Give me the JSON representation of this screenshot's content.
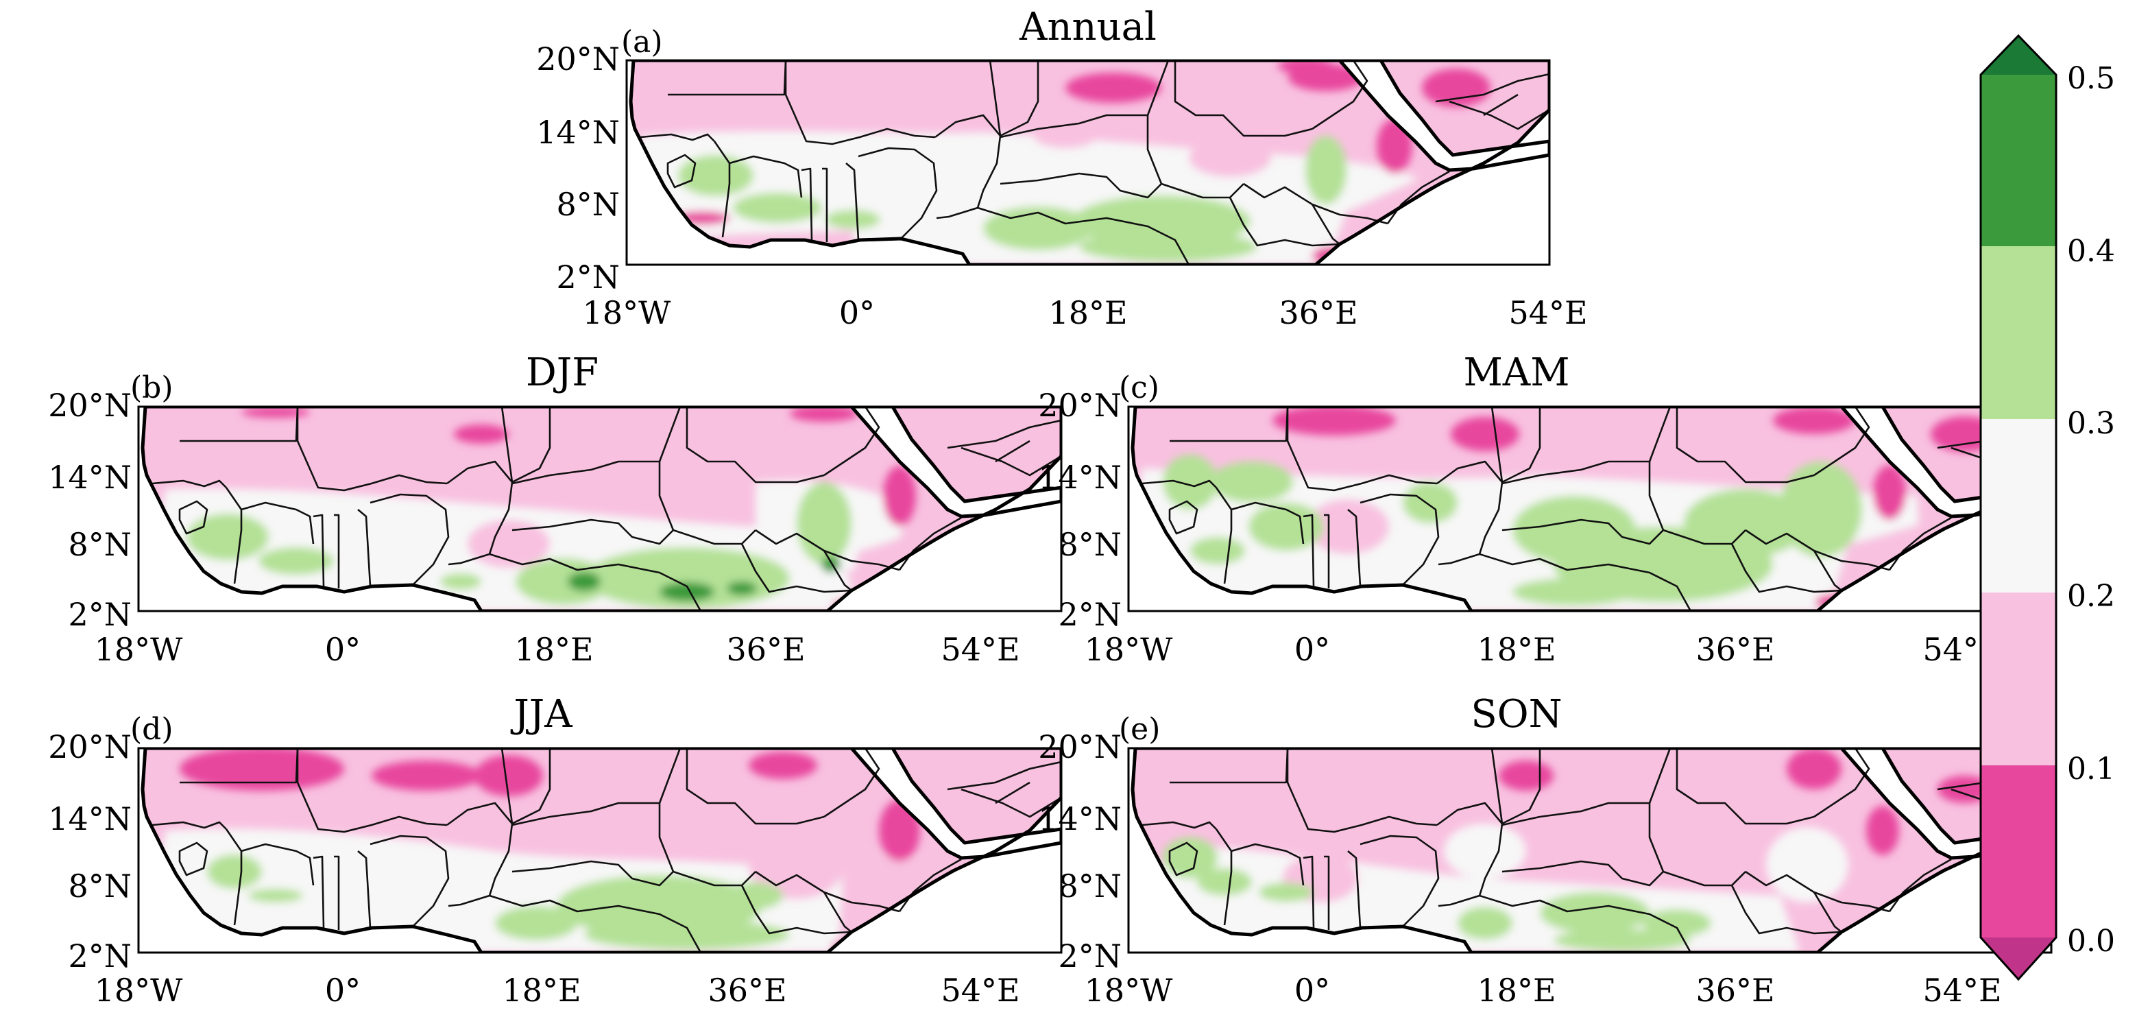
{
  "figure": {
    "colorbar": {
      "ticks": [
        "0.0",
        "0.1",
        "0.2",
        "0.3",
        "0.4",
        "0.5"
      ],
      "bins": [
        {
          "from": 0.0,
          "to": 0.1,
          "color": "#e8479e"
        },
        {
          "from": 0.1,
          "to": 0.2,
          "color": "#f8c1e0"
        },
        {
          "from": 0.2,
          "to": 0.3,
          "color": "#f7f7f7"
        },
        {
          "from": 0.3,
          "to": 0.4,
          "color": "#b4e196"
        },
        {
          "from": 0.4,
          "to": 0.5,
          "color": "#3b9a3b"
        }
      ],
      "extend_low_color": "#c0348a",
      "extend_high_color": "#1b7a36"
    },
    "x_ticks": [
      "18°W",
      "0°",
      "18°E",
      "36°E",
      "54°E"
    ],
    "y_ticks": [
      "20°N",
      "14°N",
      "8°N",
      "2°N"
    ],
    "panels": [
      {
        "id": "a",
        "label": "(a)",
        "title": "Annual"
      },
      {
        "id": "b",
        "label": "(b)",
        "title": "DJF"
      },
      {
        "id": "c",
        "label": "(c)",
        "title": "MAM"
      },
      {
        "id": "d",
        "label": "(d)",
        "title": "JJA"
      },
      {
        "id": "e",
        "label": "(e)",
        "title": "SON"
      }
    ]
  }
}
